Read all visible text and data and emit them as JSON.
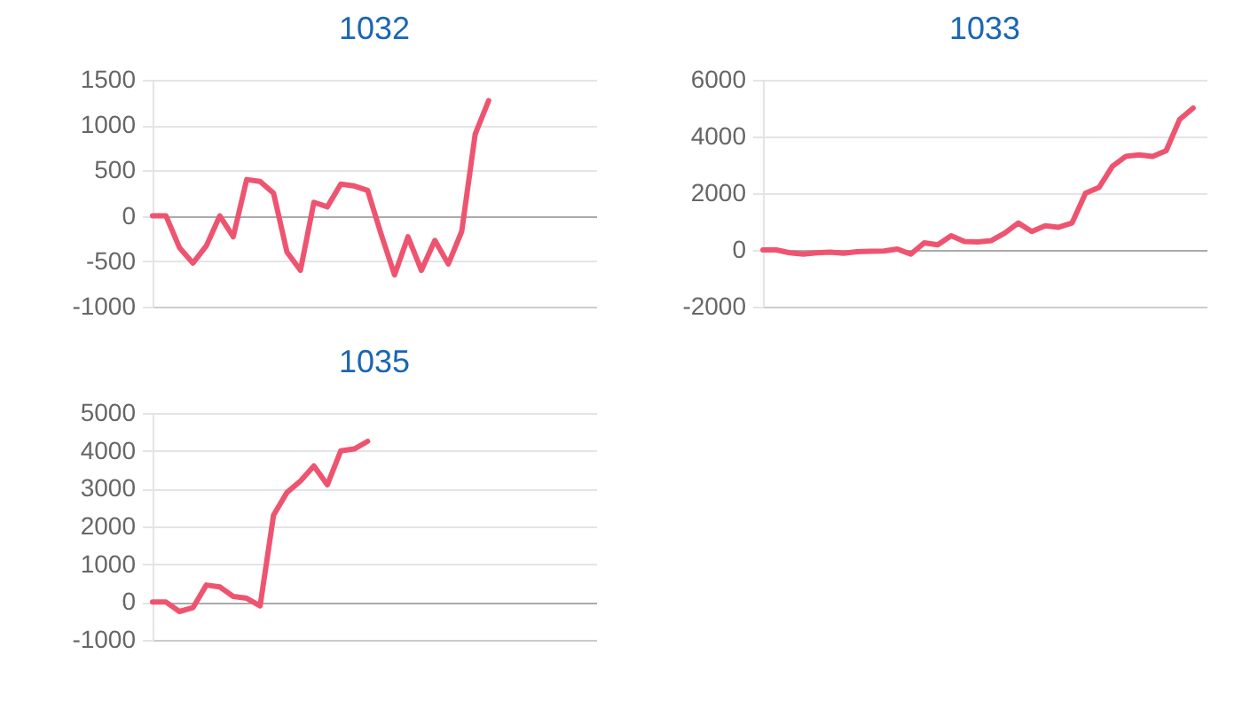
{
  "chart_data": [
    {
      "type": "line",
      "title": "1032",
      "categories": [
        null,
        null,
        null,
        null,
        null,
        null,
        null,
        null,
        null,
        null,
        null,
        null,
        null,
        null,
        null,
        null,
        null,
        null,
        null,
        null,
        null,
        null,
        null,
        null,
        null,
        null,
        null,
        null,
        null,
        null,
        null,
        null,
        null,
        null
      ],
      "series": [
        {
          "color": "#ee5470",
          "values": [
            0,
            0,
            -350,
            -520,
            -330,
            0,
            -230,
            400,
            380,
            250,
            -400,
            -600,
            150,
            100,
            350,
            330,
            280,
            -200,
            -650,
            -230,
            -600,
            -270,
            -530,
            -170,
            900,
            1270,
            null,
            null,
            null,
            null,
            null,
            null,
            null,
            null
          ]
        }
      ],
      "ylim": [
        -1000,
        1500
      ],
      "yticks": [
        -1000,
        -500,
        0,
        500,
        1000,
        1500
      ],
      "grid": "y",
      "tick_labels": "y"
    },
    {
      "type": "line",
      "title": "1033",
      "categories": [
        null,
        null,
        null,
        null,
        null,
        null,
        null,
        null,
        null,
        null,
        null,
        null,
        null,
        null,
        null,
        null,
        null,
        null,
        null,
        null,
        null,
        null,
        null,
        null,
        null,
        null,
        null,
        null,
        null,
        null,
        null,
        null,
        null,
        null
      ],
      "series": [
        {
          "color": "#ee5470",
          "values": [
            0,
            0,
            -100,
            -150,
            -100,
            -80,
            -120,
            -60,
            -50,
            -40,
            30,
            -150,
            250,
            180,
            500,
            300,
            280,
            330,
            600,
            950,
            650,
            850,
            800,
            950,
            2000,
            2200,
            2950,
            3300,
            3350,
            3300,
            3500,
            4600,
            5000,
            null
          ]
        }
      ],
      "ylim": [
        -2000,
        6000
      ],
      "yticks": [
        -2000,
        0,
        2000,
        4000,
        6000
      ],
      "grid": "y",
      "tick_labels": "y"
    },
    {
      "type": "line",
      "title": "1035",
      "categories": [
        null,
        null,
        null,
        null,
        null,
        null,
        null,
        null,
        null,
        null,
        null,
        null,
        null,
        null,
        null,
        null,
        null,
        null,
        null,
        null,
        null,
        null,
        null,
        null,
        null,
        null,
        null,
        null,
        null,
        null,
        null,
        null,
        null,
        null
      ],
      "series": [
        {
          "color": "#ee5470",
          "values": [
            0,
            0,
            -250,
            -150,
            450,
            400,
            150,
            100,
            -100,
            2300,
            2900,
            3200,
            3600,
            3100,
            4000,
            4050,
            4250,
            null,
            null,
            null,
            null,
            null,
            null,
            null,
            null,
            null,
            null,
            null,
            null,
            null,
            null,
            null,
            null,
            null
          ]
        }
      ],
      "ylim": [
        -1000,
        5000
      ],
      "yticks": [
        -1000,
        0,
        1000,
        2000,
        3000,
        4000,
        5000
      ],
      "grid": "y",
      "tick_labels": "y"
    }
  ]
}
